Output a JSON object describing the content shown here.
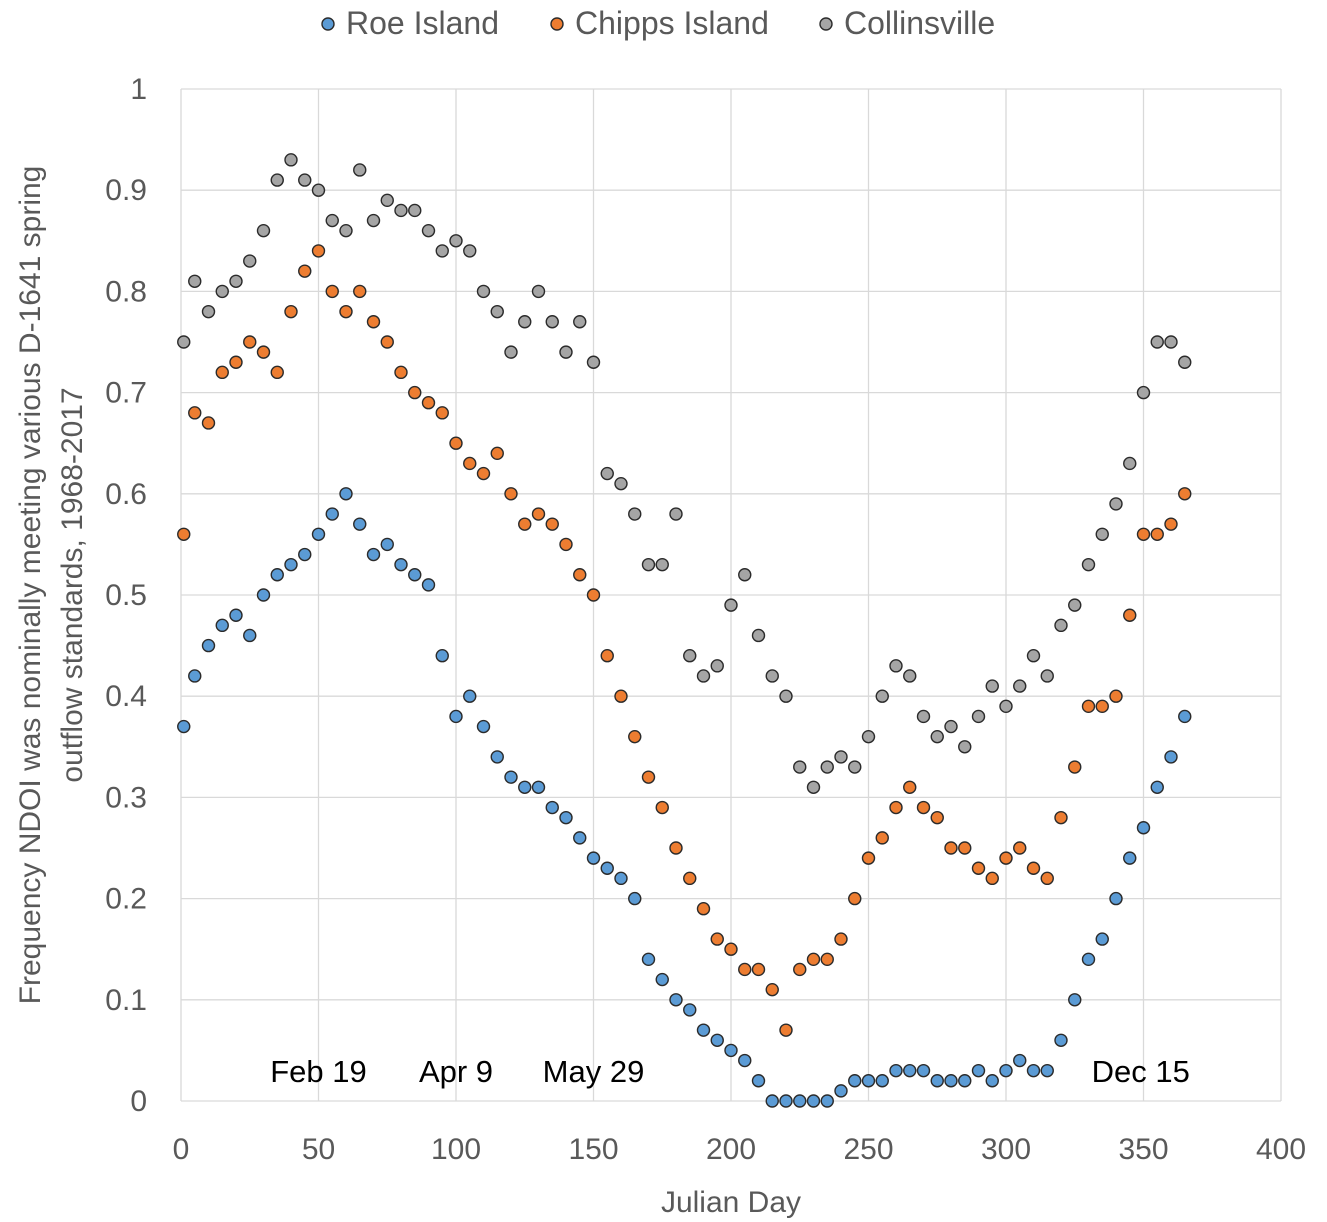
{
  "chart_data": {
    "type": "scatter",
    "xlabel": "Julian Day",
    "ylabel_lines": [
      "Frequency NDOI was nominally meeting various D-1641 spring",
      "outflow standards, 1968-2017"
    ],
    "xlim": [
      0,
      400
    ],
    "ylim": [
      0,
      1
    ],
    "x_ticks": [
      "0",
      "50",
      "100",
      "150",
      "200",
      "250",
      "300",
      "350",
      "400"
    ],
    "y_ticks": [
      "0",
      "0.1",
      "0.2",
      "0.3",
      "0.4",
      "0.5",
      "0.6",
      "0.7",
      "0.8",
      "0.9",
      "1"
    ],
    "grid": true,
    "legend_position": "top",
    "annotations": [
      {
        "text": "Feb 19",
        "x": 50
      },
      {
        "text": "Apr 9",
        "x": 100
      },
      {
        "text": "May 29",
        "x": 150
      },
      {
        "text": "Dec 15",
        "x": 349
      }
    ],
    "series": [
      {
        "name": "Roe Island",
        "color": "#5b9bd5",
        "x": [
          1,
          5,
          10,
          15,
          20,
          25,
          30,
          35,
          40,
          45,
          50,
          55,
          60,
          65,
          70,
          75,
          80,
          85,
          90,
          95,
          100,
          105,
          110,
          115,
          120,
          125,
          130,
          135,
          140,
          145,
          150,
          155,
          160,
          165,
          170,
          175,
          180,
          185,
          190,
          195,
          200,
          205,
          210,
          215,
          220,
          225,
          230,
          235,
          240,
          245,
          250,
          255,
          260,
          265,
          270,
          275,
          280,
          285,
          290,
          295,
          300,
          305,
          310,
          315,
          320,
          325,
          330,
          335,
          340,
          345,
          350,
          355,
          360,
          365
        ],
        "y": [
          0.37,
          0.42,
          0.45,
          0.47,
          0.48,
          0.46,
          0.5,
          0.52,
          0.53,
          0.54,
          0.56,
          0.58,
          0.6,
          0.57,
          0.54,
          0.55,
          0.53,
          0.52,
          0.51,
          0.44,
          0.38,
          0.4,
          0.37,
          0.34,
          0.32,
          0.31,
          0.31,
          0.29,
          0.28,
          0.26,
          0.24,
          0.23,
          0.22,
          0.2,
          0.14,
          0.12,
          0.1,
          0.09,
          0.07,
          0.06,
          0.05,
          0.04,
          0.02,
          0.0,
          0.0,
          0.0,
          0.0,
          0.0,
          0.01,
          0.02,
          0.02,
          0.02,
          0.03,
          0.03,
          0.03,
          0.02,
          0.02,
          0.02,
          0.03,
          0.02,
          0.03,
          0.04,
          0.03,
          0.03,
          0.06,
          0.1,
          0.14,
          0.16,
          0.2,
          0.24,
          0.27,
          0.31,
          0.34,
          0.38
        ]
      },
      {
        "name": "Chipps Island",
        "color": "#ed7d31",
        "x": [
          1,
          5,
          10,
          15,
          20,
          25,
          30,
          35,
          40,
          45,
          50,
          55,
          60,
          65,
          70,
          75,
          80,
          85,
          90,
          95,
          100,
          105,
          110,
          115,
          120,
          125,
          130,
          135,
          140,
          145,
          150,
          155,
          160,
          165,
          170,
          175,
          180,
          185,
          190,
          195,
          200,
          205,
          210,
          215,
          220,
          225,
          230,
          235,
          240,
          245,
          250,
          255,
          260,
          265,
          270,
          275,
          280,
          285,
          290,
          295,
          300,
          305,
          310,
          315,
          320,
          325,
          330,
          335,
          340,
          345,
          350,
          355,
          360,
          365
        ],
        "y": [
          0.56,
          0.68,
          0.67,
          0.72,
          0.73,
          0.75,
          0.74,
          0.72,
          0.78,
          0.82,
          0.84,
          0.8,
          0.78,
          0.8,
          0.77,
          0.75,
          0.72,
          0.7,
          0.69,
          0.68,
          0.65,
          0.63,
          0.62,
          0.64,
          0.6,
          0.57,
          0.58,
          0.57,
          0.55,
          0.52,
          0.5,
          0.44,
          0.4,
          0.36,
          0.32,
          0.29,
          0.25,
          0.22,
          0.19,
          0.16,
          0.15,
          0.13,
          0.13,
          0.11,
          0.07,
          0.13,
          0.14,
          0.14,
          0.16,
          0.2,
          0.24,
          0.26,
          0.29,
          0.31,
          0.29,
          0.28,
          0.25,
          0.25,
          0.23,
          0.22,
          0.24,
          0.25,
          0.23,
          0.22,
          0.28,
          0.33,
          0.39,
          0.39,
          0.4,
          0.48,
          0.56,
          0.56,
          0.57,
          0.6
        ]
      },
      {
        "name": "Collinsville",
        "color": "#a5a5a5",
        "x": [
          1,
          5,
          10,
          15,
          20,
          25,
          30,
          35,
          40,
          45,
          50,
          55,
          60,
          65,
          70,
          75,
          80,
          85,
          90,
          95,
          100,
          105,
          110,
          115,
          120,
          125,
          130,
          135,
          140,
          145,
          150,
          155,
          160,
          165,
          170,
          175,
          180,
          185,
          190,
          195,
          200,
          205,
          210,
          215,
          220,
          225,
          230,
          235,
          240,
          245,
          250,
          255,
          260,
          265,
          270,
          275,
          280,
          285,
          290,
          295,
          300,
          305,
          310,
          315,
          320,
          325,
          330,
          335,
          340,
          345,
          350,
          355,
          360,
          365
        ],
        "y": [
          0.75,
          0.81,
          0.78,
          0.8,
          0.81,
          0.83,
          0.86,
          0.91,
          0.93,
          0.91,
          0.9,
          0.87,
          0.86,
          0.92,
          0.87,
          0.89,
          0.88,
          0.88,
          0.86,
          0.84,
          0.85,
          0.84,
          0.8,
          0.78,
          0.74,
          0.77,
          0.8,
          0.77,
          0.74,
          0.77,
          0.73,
          0.62,
          0.61,
          0.58,
          0.53,
          0.53,
          0.58,
          0.44,
          0.42,
          0.43,
          0.49,
          0.52,
          0.46,
          0.42,
          0.4,
          0.33,
          0.31,
          0.33,
          0.34,
          0.33,
          0.36,
          0.4,
          0.43,
          0.42,
          0.38,
          0.36,
          0.37,
          0.35,
          0.38,
          0.41,
          0.39,
          0.41,
          0.44,
          0.42,
          0.47,
          0.49,
          0.53,
          0.56,
          0.59,
          0.63,
          0.7,
          0.75,
          0.75,
          0.73
        ]
      }
    ]
  }
}
